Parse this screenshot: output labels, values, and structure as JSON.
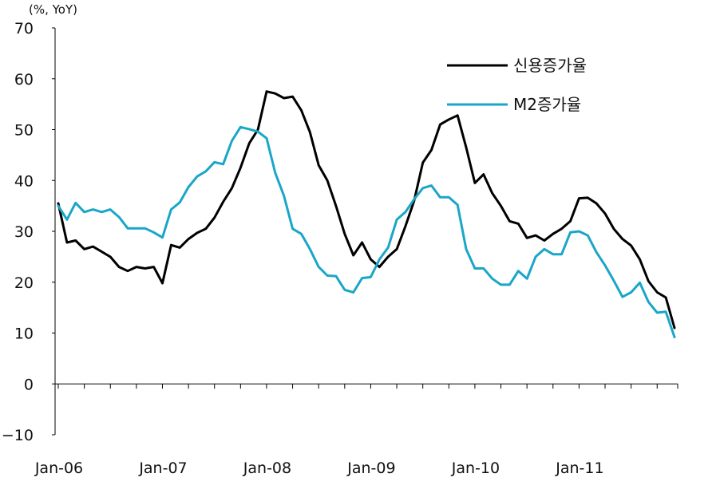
{
  "chart_data": {
    "type": "line",
    "unit_label": "(%, YoY)",
    "x_tick_labels": [
      "Jan-06",
      "Jan-07",
      "Jan-08",
      "Jan-09",
      "Jan-10",
      "Jan-11"
    ],
    "y_tick_labels": [
      "70",
      "60",
      "50",
      "40",
      "30",
      "20",
      "10",
      "0",
      "-10"
    ],
    "ylim": [
      -10,
      70
    ],
    "grid": false,
    "legend_position": "top-right",
    "x_start": "2006-01",
    "series": [
      {
        "name": "신용증가율",
        "color": "#000000",
        "values": [
          35.5,
          27.8,
          28.2,
          26.5,
          27.0,
          26.0,
          25.0,
          23.0,
          22.2,
          23.0,
          22.7,
          23.0,
          19.8,
          27.3,
          26.8,
          28.5,
          29.7,
          30.5,
          32.7,
          35.8,
          38.5,
          42.5,
          47.3,
          50.0,
          57.5,
          57.1,
          56.2,
          56.5,
          53.8,
          49.5,
          43.0,
          40.0,
          35.0,
          29.5,
          25.3,
          27.8,
          24.5,
          23.0,
          25.0,
          26.5,
          31.0,
          36.0,
          43.5,
          46.0,
          51.0,
          52.0,
          52.8,
          46.5,
          39.5,
          41.2,
          37.5,
          35.0,
          32.0,
          31.5,
          28.7,
          29.2,
          28.2,
          29.5,
          30.5,
          32.0,
          36.5,
          36.6,
          35.5,
          33.5,
          30.5,
          28.5,
          27.2,
          24.5,
          20.2,
          18.0,
          17.0,
          11.0
        ]
      },
      {
        "name": "M2증가율",
        "color": "#1aa6c8",
        "values": [
          35.0,
          32.3,
          35.6,
          33.8,
          34.3,
          33.8,
          34.3,
          32.8,
          30.6,
          30.6,
          30.6,
          29.8,
          28.8,
          34.3,
          35.7,
          38.7,
          40.8,
          41.8,
          43.6,
          43.2,
          47.8,
          50.5,
          50.1,
          49.6,
          48.3,
          41.5,
          37.0,
          30.5,
          29.5,
          26.5,
          23.0,
          21.3,
          21.2,
          18.5,
          18.0,
          20.8,
          21.0,
          24.5,
          26.8,
          32.3,
          33.8,
          36.3,
          38.5,
          39.0,
          36.7,
          36.7,
          35.2,
          26.5,
          22.7,
          22.7,
          20.7,
          19.5,
          19.5,
          22.2,
          20.7,
          25.0,
          26.5,
          25.5,
          25.5,
          29.8,
          30.0,
          29.2,
          25.9,
          23.3,
          20.3,
          17.1,
          18.0,
          19.9,
          16.1,
          14.0,
          14.2,
          9.2
        ]
      }
    ]
  }
}
